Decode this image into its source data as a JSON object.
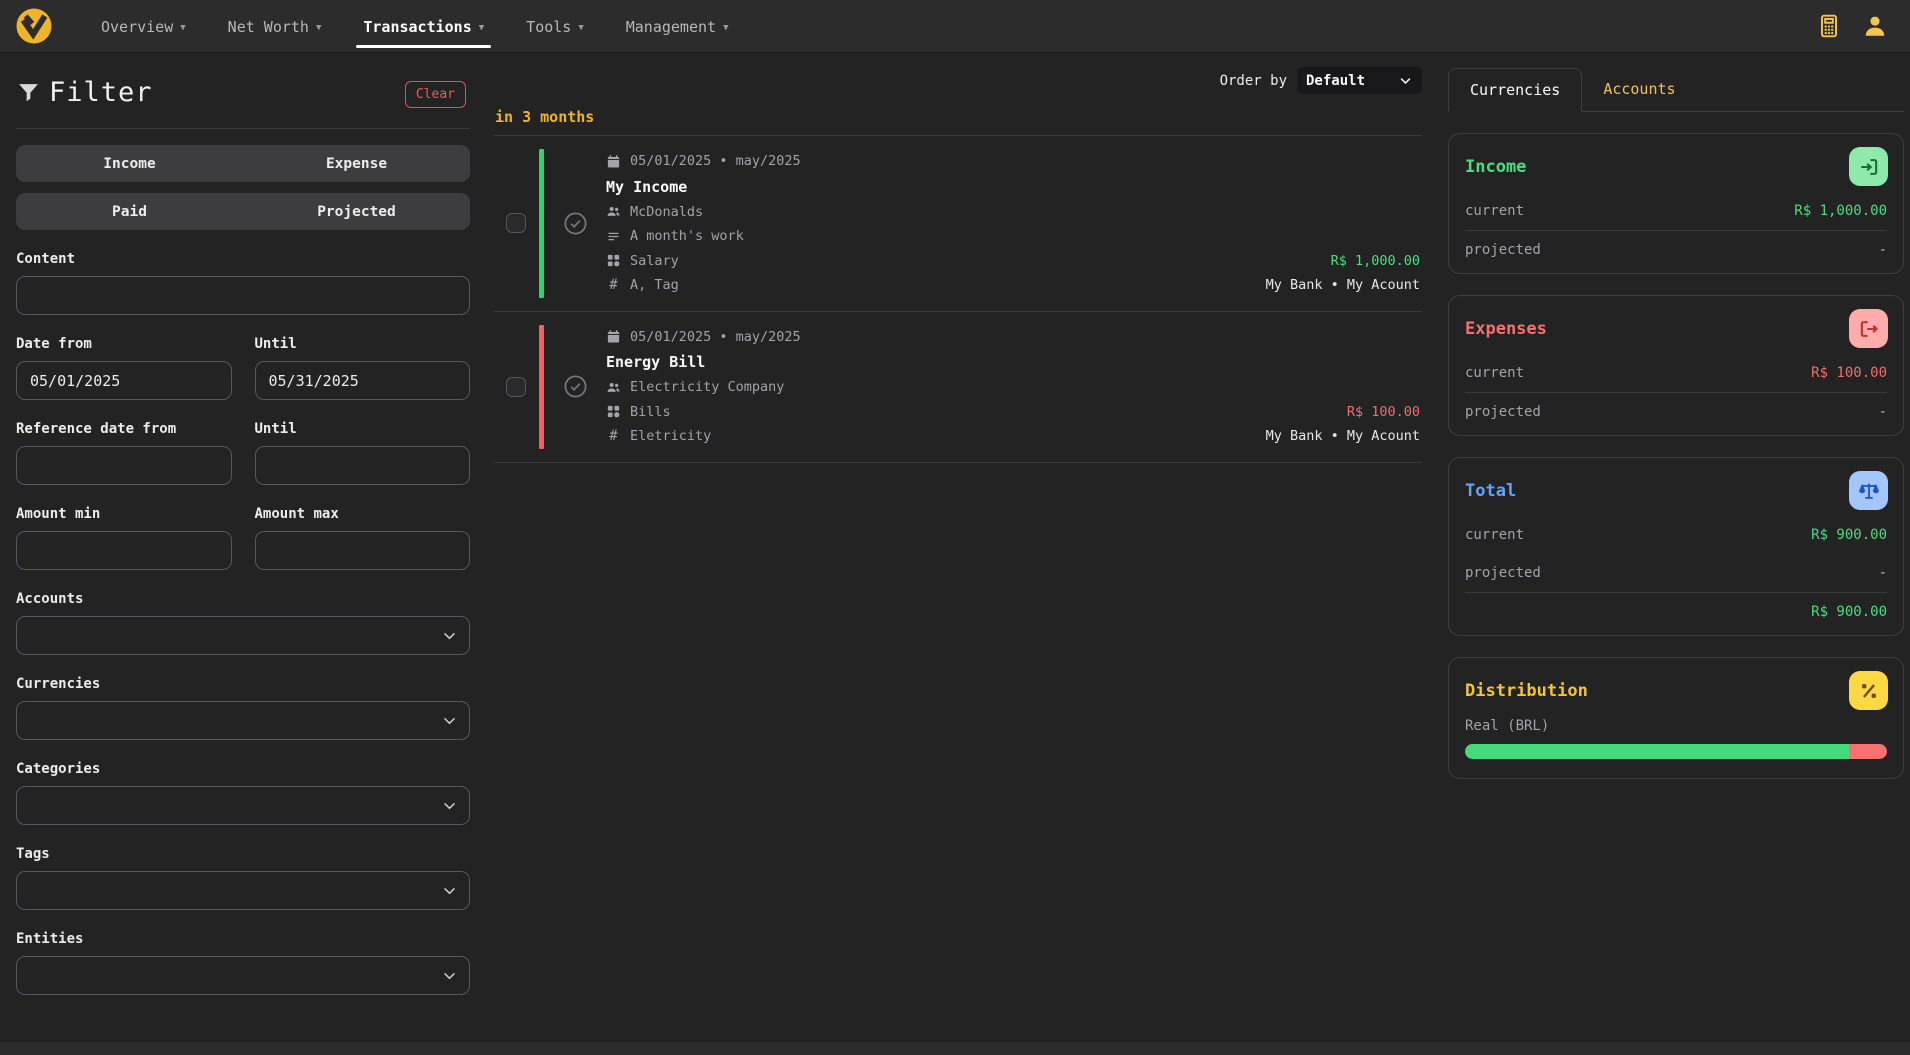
{
  "navbar": {
    "items": [
      {
        "label": "Overview"
      },
      {
        "label": "Net Worth"
      },
      {
        "label": "Transactions"
      },
      {
        "label": "Tools"
      },
      {
        "label": "Management"
      }
    ]
  },
  "filter": {
    "title": "Filter",
    "clear_label": "Clear",
    "type_toggle": {
      "income": "Income",
      "expense": "Expense"
    },
    "status_toggle": {
      "paid": "Paid",
      "projected": "Projected"
    },
    "content_label": "Content",
    "date_from_label": "Date from",
    "date_from_value": "05/01/2025",
    "date_until_label": "Until",
    "date_until_value": "05/31/2025",
    "ref_from_label": "Reference date from",
    "ref_until_label": "Until",
    "amount_min_label": "Amount min",
    "amount_max_label": "Amount max",
    "accounts_label": "Accounts",
    "currencies_label": "Currencies",
    "categories_label": "Categories",
    "tags_label": "Tags",
    "entities_label": "Entities"
  },
  "list": {
    "order_by_label": "Order by",
    "order_by_value": "Default",
    "group_header": "in 3 months",
    "hash_glyph": "#",
    "transactions": [
      {
        "type": "income",
        "date_line": "05/01/2025 • may/2025",
        "title": "My Income",
        "entity": "McDonalds",
        "description": "A month's work",
        "category": "Salary",
        "tags": "A, Tag",
        "amount": "R$ 1,000.00",
        "account": "My Bank • My Acount"
      },
      {
        "type": "expense",
        "date_line": "05/01/2025 • may/2025",
        "title": "Energy Bill",
        "entity": "Electricity Company",
        "category": "Bills",
        "tags": "Eletricity",
        "amount": "R$ 100.00",
        "account": "My Bank • My Acount"
      }
    ]
  },
  "panel": {
    "tabs": {
      "currencies": "Currencies",
      "accounts": "Accounts"
    },
    "income": {
      "title": "Income",
      "current_label": "current",
      "current_value": "R$ 1,000.00",
      "projected_label": "projected",
      "projected_value": "-"
    },
    "expenses": {
      "title": "Expenses",
      "current_label": "current",
      "current_value": "R$ 100.00",
      "projected_label": "projected",
      "projected_value": "-"
    },
    "total": {
      "title": "Total",
      "current_label": "current",
      "current_value": "R$ 900.00",
      "projected_label": "projected",
      "projected_value": "-",
      "sum_value": "R$ 900.00"
    },
    "distribution": {
      "title": "Distribution",
      "currency_label": "Real (BRL)",
      "income_pct": 90.9,
      "expense_pct": 9.1
    }
  },
  "colors": {
    "accent_gold": "#f0b429",
    "income_green": "#4ade80",
    "expense_red": "#f87171",
    "total_blue": "#60a5fa",
    "background": "#232323",
    "navbar": "#2c2c2c"
  }
}
